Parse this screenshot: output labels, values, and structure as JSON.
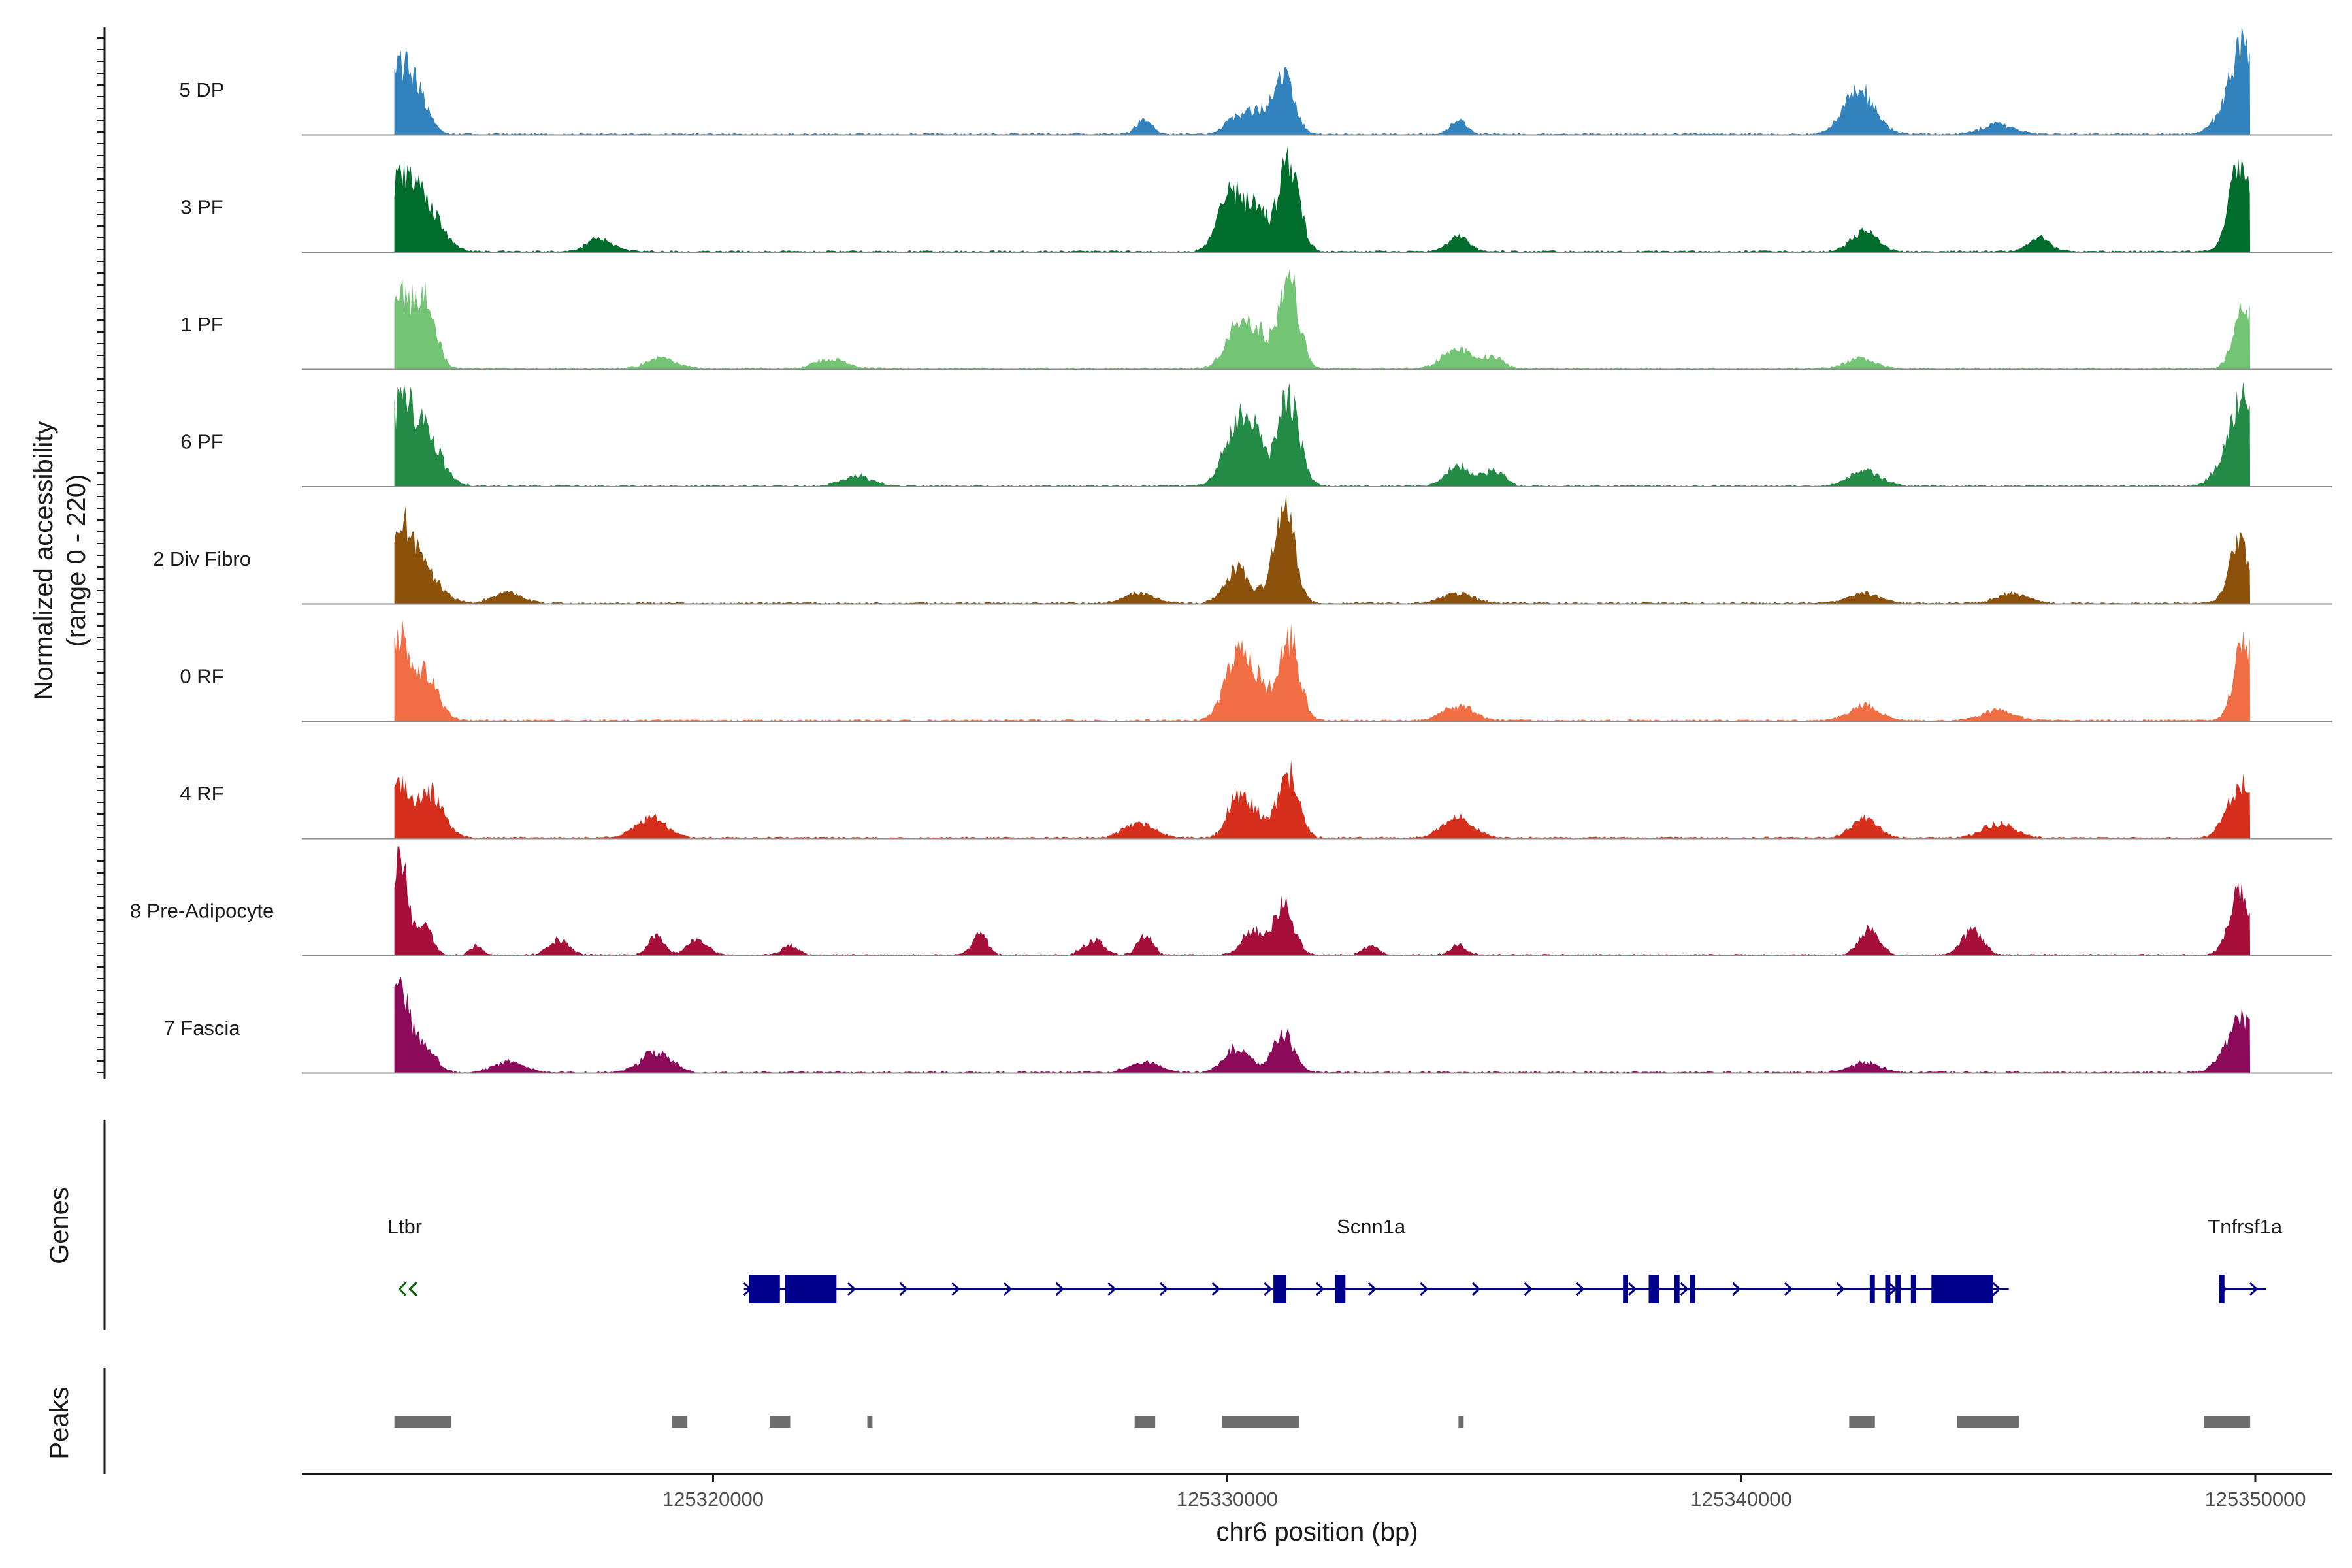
{
  "chart_data": {
    "type": "area",
    "title": "",
    "xlabel": "chr6 position (bp)",
    "ylabel_line1": "Normalized accessibility",
    "ylabel_line2": "(range 0 - 220)",
    "ylim": [
      0,
      220
    ],
    "xlim": [
      125312000,
      125351500
    ],
    "x_ticks": [
      125320000,
      125330000,
      125340000,
      125350000
    ],
    "x_tick_labels": [
      "125320000",
      "125330000",
      "125340000",
      "125350000"
    ],
    "region_start": 125313800,
    "region_end": 125349900,
    "tracks": [
      {
        "name": "5 DP",
        "color": "#3182bd",
        "peaks": [
          [
            125313900,
            130,
            250
          ],
          [
            125314300,
            60,
            200
          ],
          [
            125328400,
            30,
            150
          ],
          [
            125330200,
            40,
            200
          ],
          [
            125330600,
            40,
            150
          ],
          [
            125331100,
            130,
            200
          ],
          [
            125334500,
            30,
            150
          ],
          [
            125342300,
            90,
            300
          ],
          [
            125345000,
            20,
            300
          ],
          [
            125349500,
            60,
            250
          ],
          [
            125349800,
            150,
            200
          ]
        ]
      },
      {
        "name": "3 PF",
        "color": "#006d2c",
        "peaks": [
          [
            125313900,
            130,
            250
          ],
          [
            125314400,
            90,
            300
          ],
          [
            125317800,
            25,
            250
          ],
          [
            125330100,
            120,
            250
          ],
          [
            125330600,
            70,
            200
          ],
          [
            125331200,
            180,
            200
          ],
          [
            125334500,
            30,
            200
          ],
          [
            125342400,
            40,
            250
          ],
          [
            125345800,
            30,
            200
          ],
          [
            125349700,
            170,
            200
          ]
        ]
      },
      {
        "name": "1 PF",
        "color": "#74c476",
        "peaks": [
          [
            125313900,
            150,
            200
          ],
          [
            125314400,
            150,
            200
          ],
          [
            125319000,
            20,
            300
          ],
          [
            125322300,
            20,
            300
          ],
          [
            125330200,
            80,
            250
          ],
          [
            125330600,
            60,
            200
          ],
          [
            125331200,
            180,
            200
          ],
          [
            125334500,
            40,
            300
          ],
          [
            125335200,
            20,
            200
          ],
          [
            125342300,
            20,
            300
          ],
          [
            125349800,
            130,
            200
          ]
        ]
      },
      {
        "name": "6 PF",
        "color": "#238b45",
        "peaks": [
          [
            125313900,
            140,
            250
          ],
          [
            125314400,
            100,
            300
          ],
          [
            125322800,
            20,
            300
          ],
          [
            125330200,
            130,
            250
          ],
          [
            125330600,
            70,
            200
          ],
          [
            125331200,
            180,
            200
          ],
          [
            125334500,
            40,
            250
          ],
          [
            125335200,
            30,
            200
          ],
          [
            125342400,
            30,
            300
          ],
          [
            125349500,
            70,
            250
          ],
          [
            125349800,
            150,
            200
          ]
        ]
      },
      {
        "name": "2 Div Fibro",
        "color": "#8c510a",
        "peaks": [
          [
            125313900,
            150,
            250
          ],
          [
            125314400,
            60,
            300
          ],
          [
            125316000,
            20,
            300
          ],
          [
            125328300,
            20,
            300
          ],
          [
            125330200,
            70,
            250
          ],
          [
            125331100,
            200,
            200
          ],
          [
            125334500,
            20,
            300
          ],
          [
            125342400,
            20,
            300
          ],
          [
            125345300,
            20,
            300
          ],
          [
            125349700,
            120,
            200
          ]
        ]
      },
      {
        "name": "0 RF",
        "color": "#f16d43",
        "peaks": [
          [
            125313900,
            150,
            200
          ],
          [
            125314400,
            90,
            250
          ],
          [
            125330200,
            120,
            250
          ],
          [
            125330600,
            60,
            200
          ],
          [
            125331200,
            170,
            200
          ],
          [
            125334500,
            30,
            300
          ],
          [
            125342400,
            30,
            300
          ],
          [
            125345000,
            20,
            300
          ],
          [
            125349800,
            160,
            200
          ]
        ]
      },
      {
        "name": "4 RF",
        "color": "#d6301d",
        "peaks": [
          [
            125313900,
            110,
            200
          ],
          [
            125314500,
            90,
            250
          ],
          [
            125318800,
            40,
            300
          ],
          [
            125328300,
            30,
            300
          ],
          [
            125330200,
            80,
            200
          ],
          [
            125330600,
            40,
            200
          ],
          [
            125331200,
            130,
            200
          ],
          [
            125334500,
            40,
            300
          ],
          [
            125342400,
            40,
            250
          ],
          [
            125345000,
            30,
            300
          ],
          [
            125349500,
            40,
            200
          ],
          [
            125349800,
            100,
            200
          ]
        ]
      },
      {
        "name": "8 Pre-Adipocyte",
        "color": "#a50f3a",
        "peaks": [
          [
            125313900,
            220,
            150
          ],
          [
            125314400,
            60,
            150
          ],
          [
            125315400,
            20,
            120
          ],
          [
            125317000,
            30,
            200
          ],
          [
            125318900,
            40,
            150
          ],
          [
            125319700,
            30,
            200
          ],
          [
            125321500,
            20,
            150
          ],
          [
            125325200,
            40,
            150
          ],
          [
            125327400,
            30,
            200
          ],
          [
            125328400,
            40,
            150
          ],
          [
            125330500,
            50,
            200
          ],
          [
            125331100,
            100,
            200
          ],
          [
            125332800,
            20,
            150
          ],
          [
            125334500,
            20,
            150
          ],
          [
            125342500,
            50,
            200
          ],
          [
            125344500,
            50,
            200
          ],
          [
            125349700,
            140,
            200
          ]
        ]
      },
      {
        "name": "7 Fascia",
        "color": "#8c0a5a",
        "peaks": [
          [
            125313900,
            160,
            200
          ],
          [
            125314400,
            50,
            200
          ],
          [
            125316000,
            20,
            300
          ],
          [
            125318900,
            40,
            300
          ],
          [
            125328400,
            20,
            300
          ],
          [
            125330200,
            50,
            250
          ],
          [
            125331100,
            80,
            200
          ],
          [
            125342400,
            20,
            300
          ],
          [
            125349500,
            40,
            250
          ],
          [
            125349800,
            90,
            200
          ]
        ]
      }
    ],
    "genes_track_label": "Genes",
    "peaks_track_label": "Peaks",
    "genes": [
      {
        "name": "Ltbr",
        "strand": "-",
        "start": 125313900,
        "end": 125314200,
        "exons": [],
        "color": "#006400",
        "label_x": 125314000
      },
      {
        "name": "Scnn1a",
        "strand": "+",
        "start": 125320600,
        "end": 125344900,
        "exons": [
          [
            125320700,
            125321300
          ],
          [
            125321400,
            125322400
          ],
          [
            125330900,
            125331150
          ],
          [
            125332100,
            125332300
          ],
          [
            125337700,
            125337800
          ],
          [
            125338200,
            125338400
          ],
          [
            125338700,
            125338800
          ],
          [
            125339000,
            125339100
          ],
          [
            125342500,
            125342600
          ],
          [
            125342800,
            125342900
          ],
          [
            125343000,
            125343100
          ],
          [
            125343300,
            125343400
          ],
          [
            125343700,
            125344900
          ]
        ],
        "color": "#00008b",
        "label_x": 125332800
      },
      {
        "name": "Tnfrsf1a",
        "strand": "+",
        "start": 125349300,
        "end": 125349900,
        "exons": [
          [
            125349300,
            125349400
          ]
        ],
        "color": "#00008b",
        "label_x": 125349800
      }
    ],
    "peak_regions": [
      [
        125313800,
        125314900
      ],
      [
        125319200,
        125319500
      ],
      [
        125321100,
        125321500
      ],
      [
        125323000,
        125323100
      ],
      [
        125328200,
        125328600
      ],
      [
        125329900,
        125331400
      ],
      [
        125334500,
        125334600
      ],
      [
        125342100,
        125342600
      ],
      [
        125344200,
        125345400
      ],
      [
        125349000,
        125349900
      ]
    ]
  }
}
